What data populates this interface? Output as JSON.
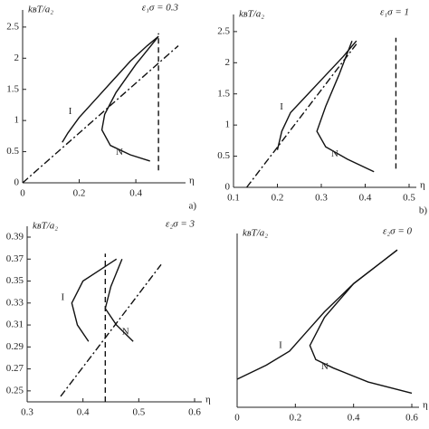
{
  "chart_data": [
    {
      "type": "line",
      "title": "ε₁σ = 0.3",
      "ylabel": "kʙT/a₂",
      "xlabel": "η",
      "panel": "a)",
      "xlim": [
        0,
        0.55
      ],
      "ylim": [
        0,
        2.6
      ],
      "xticks": [
        0,
        0.2,
        0.4
      ],
      "yticks": [
        0,
        0.5,
        1,
        1.5,
        2,
        2.5
      ],
      "series": [
        {
          "name": "I",
          "style": "solid",
          "color": "#111",
          "x": [
            0.14,
            0.16,
            0.2,
            0.26,
            0.32,
            0.38,
            0.44,
            0.48
          ],
          "values": [
            0.65,
            0.8,
            1.05,
            1.35,
            1.65,
            1.95,
            2.2,
            2.35
          ]
        },
        {
          "name": "N",
          "style": "solid",
          "color": "#111",
          "x": [
            0.45,
            0.38,
            0.31,
            0.28,
            0.29,
            0.33,
            0.4,
            0.48
          ],
          "values": [
            0.35,
            0.45,
            0.6,
            0.85,
            1.1,
            1.45,
            1.9,
            2.35
          ]
        },
        {
          "style": "dashdot",
          "color": "#111",
          "x": [
            0,
            0.55
          ],
          "values": [
            0,
            2.2
          ]
        },
        {
          "style": "dashed",
          "color": "#111",
          "x": [
            0.48,
            0.48
          ],
          "values": [
            0.2,
            2.4
          ]
        }
      ]
    },
    {
      "type": "line",
      "title": "ε₁σ = 1",
      "ylabel": "kʙT/a₂",
      "xlabel": "η",
      "panel": "b)",
      "xlim": [
        0.1,
        0.5
      ],
      "ylim": [
        0,
        2.6
      ],
      "xticks": [
        0.1,
        0.2,
        0.3,
        0.4,
        0.5
      ],
      "yticks": [
        0,
        0.5,
        1,
        1.5,
        2,
        2.5
      ],
      "series": [
        {
          "name": "I",
          "style": "solid",
          "color": "#111",
          "x": [
            0.2,
            0.21,
            0.23,
            0.27,
            0.31,
            0.35,
            0.38
          ],
          "values": [
            0.6,
            0.9,
            1.2,
            1.5,
            1.8,
            2.1,
            2.35
          ]
        },
        {
          "name": "N",
          "style": "solid",
          "color": "#111",
          "x": [
            0.42,
            0.36,
            0.31,
            0.29,
            0.31,
            0.34,
            0.37
          ],
          "values": [
            0.25,
            0.45,
            0.65,
            0.9,
            1.3,
            1.8,
            2.35
          ]
        },
        {
          "style": "dashdot",
          "color": "#111",
          "x": [
            0.13,
            0.38
          ],
          "values": [
            0,
            2.3
          ]
        },
        {
          "style": "dashed",
          "color": "#111",
          "x": [
            0.47,
            0.47
          ],
          "values": [
            0.3,
            2.4
          ]
        }
      ]
    },
    {
      "type": "line",
      "title": "ε₂σ = 3",
      "ylabel": "kʙT/a₂",
      "xlabel": "η",
      "xlim": [
        0.3,
        0.6
      ],
      "ylim": [
        0.24,
        0.39
      ],
      "xticks": [
        0.3,
        0.4,
        0.5,
        0.6
      ],
      "yticks": [
        0.25,
        0.27,
        0.29,
        0.31,
        0.33,
        0.35,
        0.37,
        0.39
      ],
      "series": [
        {
          "name": "I",
          "style": "solid",
          "color": "#111",
          "x": [
            0.41,
            0.39,
            0.38,
            0.4,
            0.43,
            0.46
          ],
          "values": [
            0.295,
            0.31,
            0.33,
            0.35,
            0.36,
            0.37
          ]
        },
        {
          "name": "N",
          "style": "solid",
          "color": "#111",
          "x": [
            0.49,
            0.46,
            0.44,
            0.45,
            0.47
          ],
          "values": [
            0.295,
            0.31,
            0.325,
            0.345,
            0.37
          ]
        },
        {
          "style": "dashdot",
          "color": "#111",
          "x": [
            0.36,
            0.54
          ],
          "values": [
            0.245,
            0.365
          ]
        },
        {
          "style": "dashed",
          "color": "#111",
          "x": [
            0.44,
            0.44
          ],
          "values": [
            0.24,
            0.375
          ]
        }
      ]
    },
    {
      "type": "line",
      "title": "ε₂σ = 0",
      "ylabel": "kʙT/a₂",
      "xlabel": "η",
      "xlim": [
        0,
        0.6
      ],
      "ylim": [
        0,
        2.9
      ],
      "xticks": [
        0,
        0.2,
        0.4,
        0.6
      ],
      "series": [
        {
          "name": "I",
          "style": "solid",
          "color": "#111",
          "x": [
            0,
            0.1,
            0.18,
            0.24,
            0.3,
            0.4,
            0.5,
            0.55
          ],
          "values": [
            0.5,
            0.75,
            1.0,
            1.35,
            1.7,
            2.2,
            2.6,
            2.8
          ]
        },
        {
          "name": "N",
          "style": "solid",
          "color": "#111",
          "x": [
            0.6,
            0.45,
            0.33,
            0.27,
            0.25,
            0.3,
            0.4,
            0.5,
            0.55
          ],
          "values": [
            0.25,
            0.45,
            0.7,
            0.85,
            1.1,
            1.6,
            2.2,
            2.6,
            2.8
          ]
        }
      ]
    }
  ]
}
